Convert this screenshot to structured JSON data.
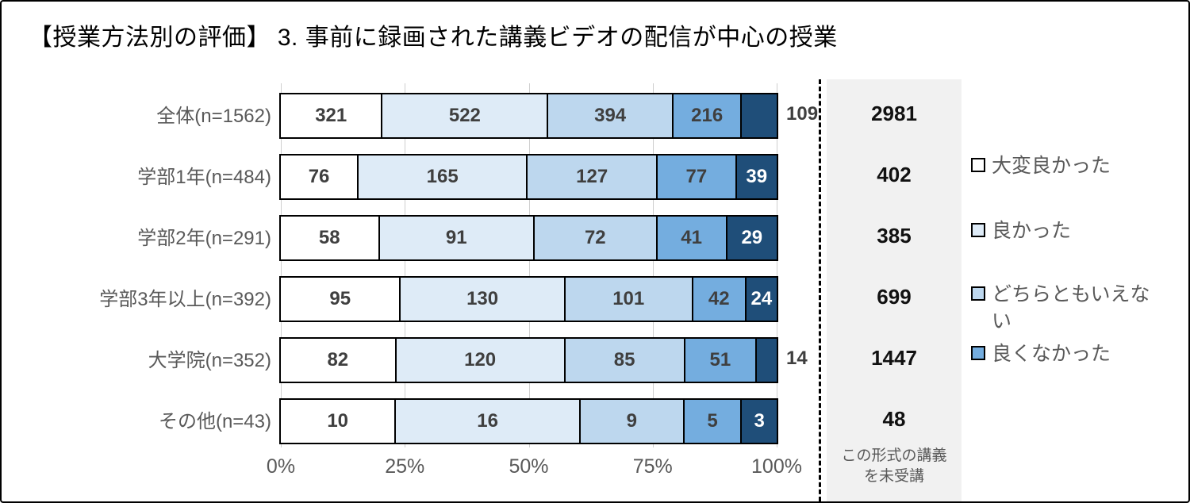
{
  "title": "【授業方法別の評価】 3. 事前に録画された講義ビデオの配信が中心の授業",
  "chart_data": {
    "type": "bar",
    "stacked": true,
    "orientation": "horizontal",
    "x_axis": {
      "ticks": [
        "0%",
        "25%",
        "50%",
        "75%",
        "100%"
      ],
      "range": [
        0,
        100
      ],
      "unit": "percent"
    },
    "grid": true,
    "categories": [
      "全体(n=1562)",
      "学部1年(n=484)",
      "学部2年(n=291)",
      "学部3年以上(n=392)",
      "大学院(n=352)",
      "その他(n=43)"
    ],
    "series": [
      {
        "name": "大変良かった",
        "color": "#ffffff",
        "values": [
          321,
          76,
          58,
          95,
          82,
          10
        ]
      },
      {
        "name": "良かった",
        "color": "#deebf7",
        "values": [
          522,
          165,
          91,
          130,
          120,
          16
        ]
      },
      {
        "name": "どちらともいえない",
        "color": "#bdd7ee",
        "values": [
          394,
          127,
          72,
          101,
          85,
          9
        ]
      },
      {
        "name": "良くなかった",
        "color": "#74addf",
        "values": [
          216,
          77,
          41,
          42,
          51,
          5
        ]
      },
      {
        "name": "",
        "color": "#1f4e79",
        "values": [
          109,
          39,
          29,
          24,
          14,
          3
        ]
      }
    ],
    "legend": {
      "position": "right",
      "items": [
        {
          "label": "大変良かった",
          "swatch_color": "#ffffff"
        },
        {
          "label": "良かった",
          "swatch_color": "#deebf7"
        },
        {
          "label": "どちらともいえない",
          "swatch_color": "#bdd7ee"
        },
        {
          "label": "良くなかった",
          "swatch_color": "#74addf"
        }
      ]
    },
    "summary_column": {
      "values": [
        2981,
        402,
        385,
        699,
        1447,
        48
      ],
      "note": "この形式の講義\nを未受講",
      "background": "#f1f1f1"
    }
  },
  "colors": {
    "grid": "#cfcfcf",
    "category_label": "#595959",
    "value_label": "#3f3f3f",
    "value_label_on_dark": "#ffffff",
    "summary_bg": "#f1f1f1",
    "separator": "#000000",
    "bar_border": "#000000"
  }
}
